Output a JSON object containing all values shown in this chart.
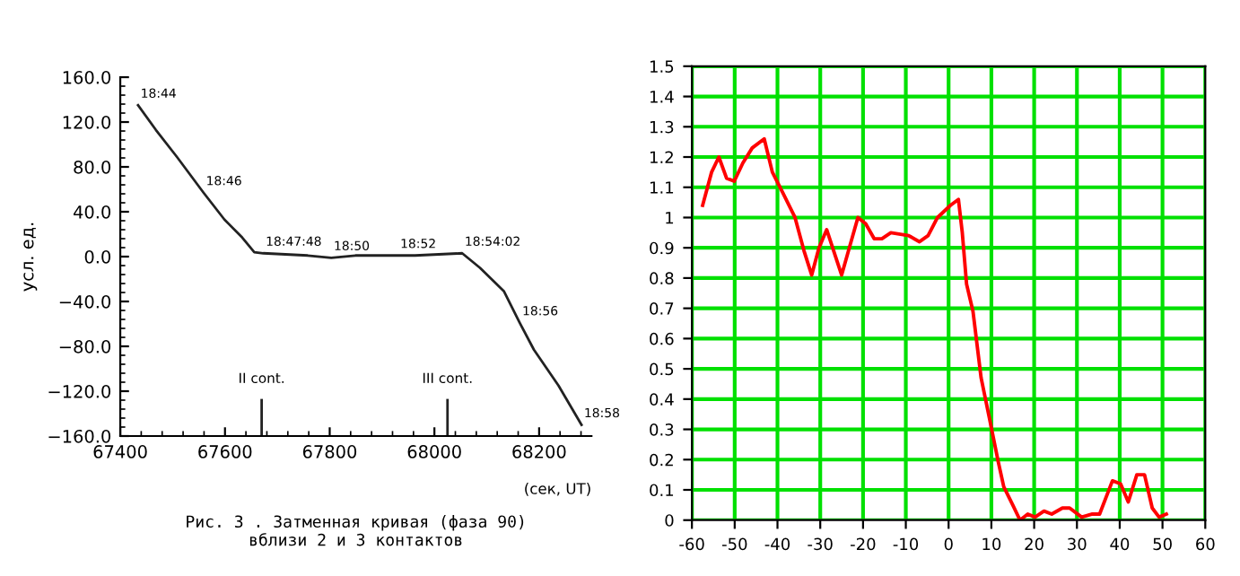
{
  "chart_data": [
    {
      "type": "line",
      "ylabel": "усл. ед.",
      "xlabel": "(сек, UT)",
      "xlim": [
        67400,
        68300
      ],
      "ylim": [
        -160,
        160
      ],
      "xticks": [
        67400,
        67600,
        67800,
        68000,
        68200
      ],
      "yticks": [
        {
          "value": 160,
          "label": "160.0"
        },
        {
          "value": 120,
          "label": "120.0"
        },
        {
          "value": 80,
          "label": "80.0"
        },
        {
          "value": 40,
          "label": "40.0"
        },
        {
          "value": 0,
          "label": "0.0"
        },
        {
          "value": -40,
          "label": "−40.0"
        },
        {
          "value": -80,
          "label": "−80.0"
        },
        {
          "value": -120,
          "label": "−120.0"
        },
        {
          "value": -160,
          "label": "−160.0"
        }
      ],
      "grid": false,
      "series": [
        {
          "color": "#222222",
          "x": [
            67434,
            67468,
            67508,
            67559,
            67599,
            67633,
            67656,
            67673,
            67758,
            67803,
            67849,
            67963,
            68053,
            68087,
            68133,
            68163,
            68190,
            68237,
            68281
          ],
          "values": [
            135,
            113,
            89,
            57,
            33,
            17,
            4,
            3,
            1,
            -1,
            1,
            1,
            3,
            -10,
            -31,
            -59,
            -83,
            -115,
            -150
          ]
        }
      ],
      "ref_lines": [
        {
          "axis": "x",
          "value": 67670,
          "label": "II cont."
        },
        {
          "axis": "x",
          "value": 68025,
          "label": "III cont."
        }
      ],
      "annotations": [
        {
          "text": "18:44",
          "x": 67434,
          "y": 135
        },
        {
          "text": "18:46",
          "x": 67559,
          "y": 57
        },
        {
          "text": "18:47:48",
          "x": 67673,
          "y": 3
        },
        {
          "text": "18:50",
          "x": 67803,
          "y": -1
        },
        {
          "text": "18:52",
          "x": 67930,
          "y": 1
        },
        {
          "text": "18:54:02",
          "x": 68053,
          "y": 3
        },
        {
          "text": "18:56",
          "x": 68163,
          "y": -59
        },
        {
          "text": "18:58",
          "x": 68281,
          "y": -150
        },
        "Рис. 3 . Затменная кривая (фаза 90)\nвблизи 2 и 3 контактов"
      ]
    },
    {
      "type": "line",
      "xlim": [
        -60,
        60
      ],
      "ylim": [
        0,
        1.5
      ],
      "xticks": [
        -60,
        -50,
        -40,
        -30,
        -20,
        -10,
        0,
        10,
        20,
        30,
        40,
        50,
        60
      ],
      "yticks": [
        0,
        0.1,
        0.2,
        0.3,
        0.4,
        0.5,
        0.6,
        0.7,
        0.8,
        0.9,
        1,
        1.1,
        1.2,
        1.3,
        1.4,
        1.5
      ],
      "grid": true,
      "series": [
        {
          "color": "#ff0000",
          "x": [
            -57.5,
            -55.4,
            -53.7,
            -51.9,
            -50.1,
            -48.1,
            -45.9,
            -43.1,
            -41.2,
            -38.7,
            -35.9,
            -33.8,
            -32.0,
            -30.3,
            -28.5,
            -26.4,
            -25.0,
            -23.0,
            -21.2,
            -19.4,
            -17.4,
            -15.6,
            -13.5,
            -9.3,
            -6.8,
            -4.8,
            -2.6,
            0.4,
            2.3,
            3.2,
            4.2,
            5.7,
            7.6,
            9.5,
            11.5,
            12.9,
            15.0,
            16.7,
            18.5,
            20.2,
            22.3,
            24.1,
            26.6,
            28.3,
            31.1,
            33.6,
            35.3,
            38.3,
            40.2,
            42.0,
            44.0,
            45.8,
            47.6,
            49.2,
            50.9
          ],
          "values": [
            1.04,
            1.15,
            1.2,
            1.13,
            1.12,
            1.18,
            1.23,
            1.26,
            1.15,
            1.08,
            1.0,
            0.89,
            0.81,
            0.9,
            0.96,
            0.87,
            0.81,
            0.91,
            1.0,
            0.98,
            0.93,
            0.93,
            0.95,
            0.94,
            0.92,
            0.94,
            1.0,
            1.04,
            1.06,
            0.95,
            0.78,
            0.69,
            0.47,
            0.34,
            0.2,
            0.11,
            0.05,
            0.0,
            0.02,
            0.01,
            0.03,
            0.02,
            0.04,
            0.04,
            0.01,
            0.02,
            0.02,
            0.13,
            0.12,
            0.06,
            0.15,
            0.15,
            0.04,
            0.01,
            0.02
          ]
        }
      ]
    }
  ]
}
